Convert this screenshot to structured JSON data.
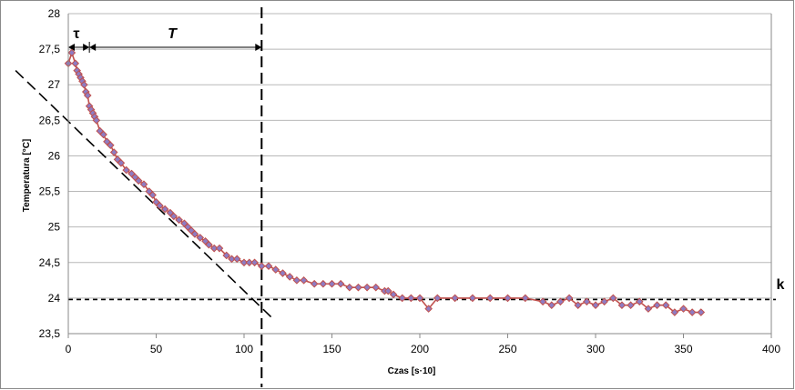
{
  "chart_data": {
    "type": "scatter",
    "xlabel": "Czas [s·10]",
    "ylabel": "Temperatura [°C]",
    "xlim": [
      0,
      400
    ],
    "ylim": [
      23.5,
      28
    ],
    "x_ticks": [
      "0",
      "50",
      "100",
      "150",
      "200",
      "250",
      "300",
      "350",
      "400"
    ],
    "y_ticks": [
      "23,5",
      "24",
      "24,5",
      "25",
      "25,5",
      "26",
      "26,5",
      "27",
      "27,5",
      "28"
    ],
    "grid": "horizontal",
    "series": [
      {
        "x": [
          0,
          2,
          4,
          5,
          6,
          7,
          8,
          9,
          10,
          11,
          12,
          13,
          14,
          15,
          16,
          18,
          20,
          22,
          24,
          26,
          28,
          30,
          33,
          36,
          38,
          40,
          43,
          46,
          48,
          50,
          52,
          55,
          58,
          60,
          63,
          66,
          68,
          70,
          72,
          75,
          78,
          80,
          83,
          86,
          90,
          93,
          96,
          100,
          103,
          106,
          110,
          114,
          118,
          122,
          126,
          130,
          134,
          140,
          145,
          150,
          155,
          160,
          165,
          170,
          175,
          180,
          182,
          185,
          190,
          195,
          200,
          205,
          210,
          220,
          230,
          240,
          250,
          260,
          270,
          275,
          280,
          285,
          290,
          295,
          300,
          305,
          310,
          315,
          320,
          325,
          330,
          335,
          340,
          345,
          350,
          355,
          360
        ],
        "y": [
          27.3,
          27.45,
          27.3,
          27.2,
          27.15,
          27.1,
          27.05,
          27.0,
          26.9,
          26.85,
          26.7,
          26.65,
          26.6,
          26.55,
          26.5,
          26.35,
          26.3,
          26.2,
          26.15,
          26.05,
          25.95,
          25.9,
          25.8,
          25.75,
          25.7,
          25.65,
          25.6,
          25.5,
          25.45,
          25.35,
          25.3,
          25.25,
          25.2,
          25.15,
          25.1,
          25.05,
          25.0,
          24.95,
          24.9,
          24.85,
          24.8,
          24.75,
          24.7,
          24.7,
          24.6,
          24.55,
          24.55,
          24.5,
          24.5,
          24.5,
          24.45,
          24.45,
          24.4,
          24.35,
          24.3,
          24.25,
          24.25,
          24.2,
          24.2,
          24.2,
          24.2,
          24.15,
          24.15,
          24.15,
          24.15,
          24.1,
          24.1,
          24.05,
          24.0,
          24.0,
          24.0,
          23.85,
          24.0,
          24.0,
          24.0,
          24.0,
          24.0,
          24.0,
          23.95,
          23.9,
          23.95,
          24.0,
          23.9,
          23.95,
          23.9,
          23.95,
          24.0,
          23.9,
          23.9,
          23.95,
          23.85,
          23.9,
          23.9,
          23.8,
          23.85,
          23.8,
          23.8
        ]
      }
    ],
    "annotations": {
      "steady_state_value": 23.98,
      "dead_time_end_x": 12,
      "time_constant_end_x": 110,
      "tangent_line": [
        [
          -30,
          27.2
        ],
        [
          116,
          23.72
        ]
      ],
      "labels": {
        "tau": "τ",
        "T": "T",
        "k": "k"
      }
    }
  }
}
